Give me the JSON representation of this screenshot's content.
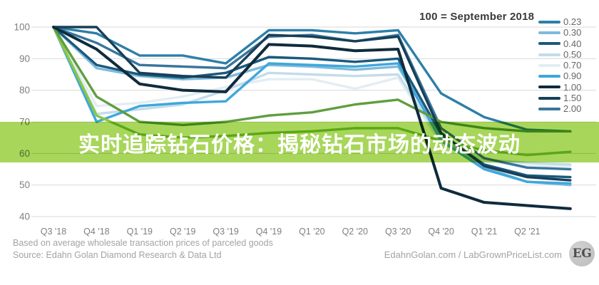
{
  "annotation": "100 = September 2018",
  "banner": {
    "text": "实时追踪钻石价格：揭秘钻石市场的动态波动",
    "bg_color": "#a7d65a",
    "text_color": "#ffffff"
  },
  "footer": {
    "note": "Based on average wholesale transaction prices of parceled goods",
    "source": "Source: Edahn Golan Diamond Research & Data Ltd",
    "site": "EdahnGolan.com / LabGrownPriceList.com",
    "logo_text": "EG"
  },
  "chart_data": {
    "type": "line",
    "title": "",
    "xlabel": "",
    "ylabel": "",
    "index_note": "100 = September 2018",
    "ylim": [
      40,
      100
    ],
    "y_ticks": [
      100,
      90,
      80,
      70,
      60,
      50,
      40
    ],
    "grid": true,
    "legend_position": "top-right",
    "categories": [
      "Q3 '18",
      "Q4 '18",
      "Q1 '19",
      "Q2 '19",
      "Q3 '19",
      "Q4 '19",
      "Q1 '20",
      "Q2 '20",
      "Q3 '20",
      "Q4 '20",
      "Q1 '21",
      "Q2 '21",
      ""
    ],
    "series": [
      {
        "name": "0.23",
        "color": "#2d7fa8",
        "in_legend": true,
        "values": [
          100,
          98,
          91,
          91,
          88.5,
          99,
          99,
          98,
          99,
          79,
          71.5,
          67.5,
          67
        ]
      },
      {
        "name": "0.30",
        "color": "#7fbada",
        "in_legend": true,
        "values": [
          100,
          87,
          84.5,
          83.5,
          84,
          88,
          87.5,
          86.5,
          87.5,
          65,
          55.5,
          51,
          50
        ]
      },
      {
        "name": "0.40",
        "color": "#1a597d",
        "in_legend": true,
        "values": [
          100,
          88,
          85,
          84,
          85.5,
          90.5,
          90,
          89,
          90,
          66,
          56.5,
          53,
          52.5
        ]
      },
      {
        "name": "0.50",
        "color": "#c3dcea",
        "in_legend": true,
        "values": [
          100,
          72.5,
          74,
          75.5,
          80,
          85.5,
          85,
          84.5,
          85,
          64,
          58,
          57,
          56.5
        ]
      },
      {
        "name": "0.70",
        "color": "#e2edf4",
        "in_legend": true,
        "values": [
          100,
          75,
          76,
          78,
          81,
          83.5,
          83.5,
          80.5,
          84,
          63,
          57.5,
          56,
          56
        ]
      },
      {
        "name": "0.90",
        "color": "#3fa7dc",
        "in_legend": true,
        "values": [
          100,
          70,
          75,
          76,
          76.5,
          88.5,
          88,
          87.5,
          88.5,
          64,
          55,
          51,
          50.5
        ]
      },
      {
        "name": "1.00",
        "color": "#0f2b3d",
        "in_legend": true,
        "values": [
          100,
          93,
          82,
          80,
          79.5,
          94.5,
          94,
          92.5,
          93,
          49,
          44.5,
          43.5,
          42.5
        ]
      },
      {
        "name": "1.50",
        "color": "#173f57",
        "in_legend": true,
        "values": [
          100,
          100,
          85.5,
          84.5,
          84,
          97.5,
          97,
          95.5,
          97,
          66.5,
          56,
          52.5,
          51.5
        ]
      },
      {
        "name": "2.00",
        "color": "#38759c",
        "in_legend": true,
        "values": [
          100,
          95,
          88,
          87.5,
          87,
          97,
          97.5,
          95.5,
          97.5,
          68,
          58.5,
          55.5,
          55
        ]
      },
      {
        "name": "",
        "color": "#5f9e3e",
        "in_legend": false,
        "values": [
          100,
          78,
          70,
          69,
          70,
          72,
          73,
          75.5,
          77,
          70,
          68,
          67,
          67
        ]
      },
      {
        "name": "",
        "color": "#8dc63f",
        "in_legend": false,
        "values": [
          100,
          72,
          66,
          65,
          65.5,
          66.5,
          67,
          68,
          68,
          64,
          61,
          59.5,
          60.5
        ]
      }
    ]
  }
}
